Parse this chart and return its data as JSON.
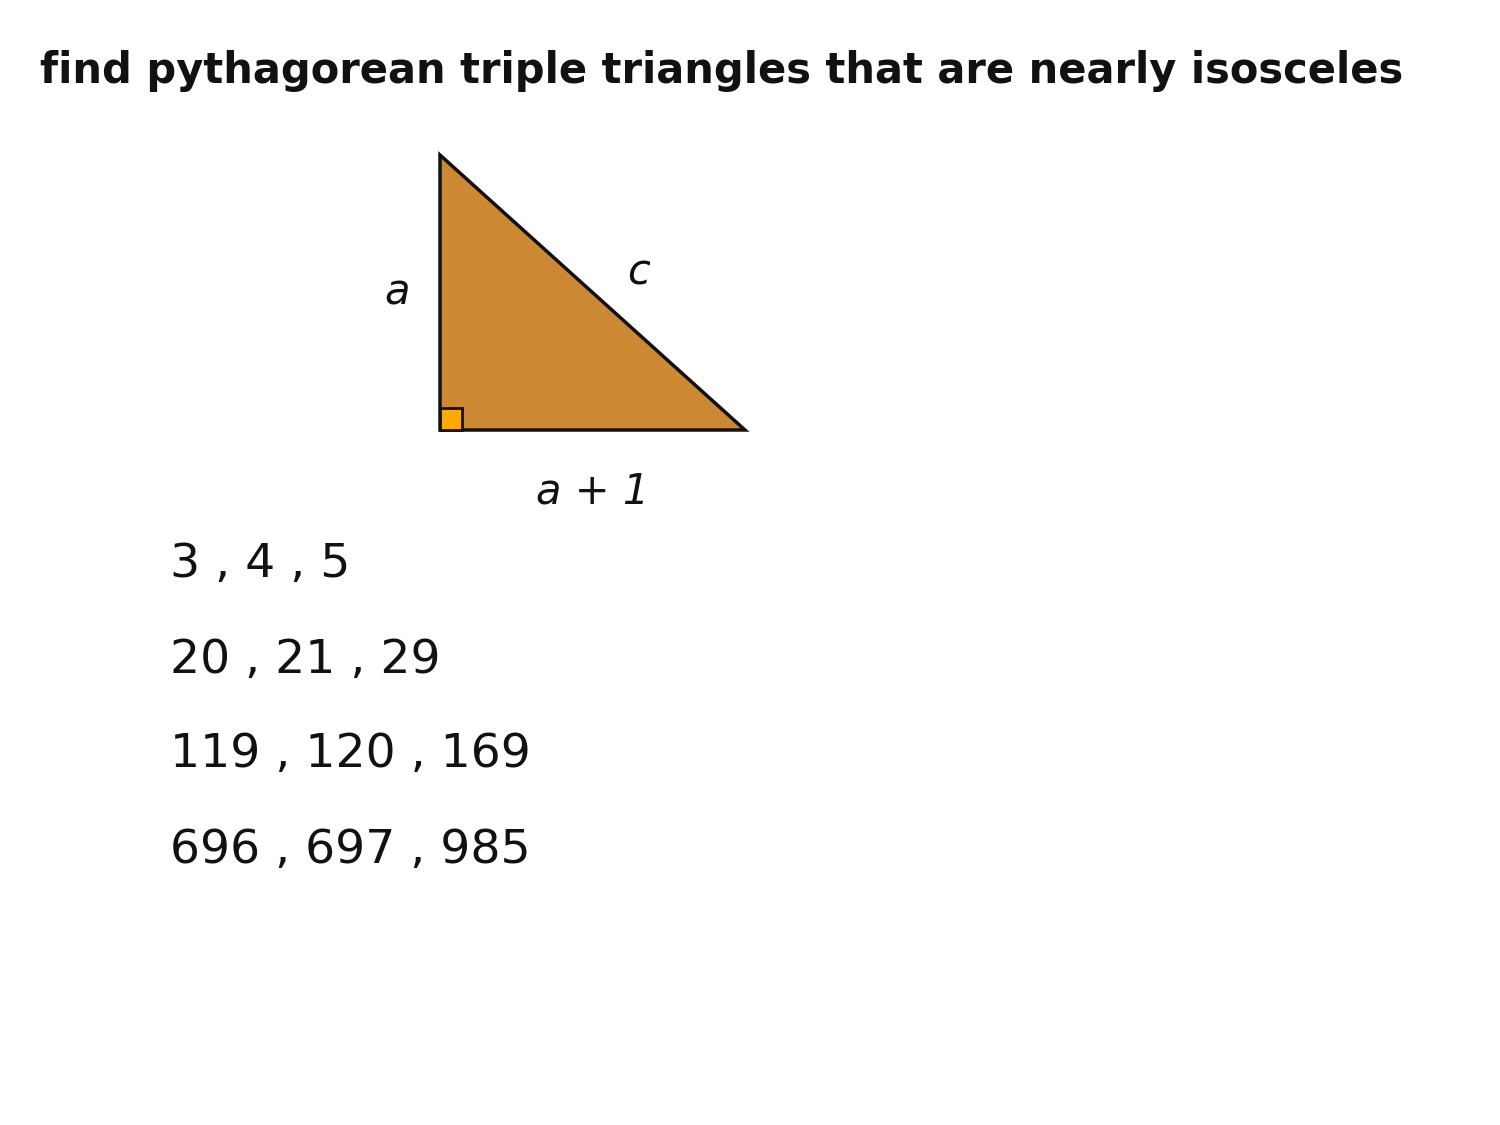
{
  "title": "find pythagorean triple triangles that are nearly isosceles",
  "title_fontsize": 30,
  "title_fontweight": "bold",
  "background_color": "#ffffff",
  "triangle": {
    "fill_color": "#cc8833",
    "edge_color": "#111111",
    "linewidth": 2.5
  },
  "right_angle_box": {
    "fill_color": "#ffaa00",
    "edge_color": "#111111",
    "linewidth": 2.0
  },
  "label_a": {
    "text": "a",
    "fontsize": 30,
    "style": "italic",
    "color": "#111111"
  },
  "label_b": {
    "text": "a + 1",
    "fontsize": 30,
    "style": "italic",
    "color": "#111111"
  },
  "label_c": {
    "text": "c",
    "fontsize": 30,
    "style": "italic",
    "color": "#111111"
  },
  "triples": [
    "3 , 4 , 5",
    "20 , 21 , 29",
    "119 , 120 , 169",
    "696 , 697 , 985"
  ],
  "triples_fontsize": 34,
  "triples_color": "#111111"
}
